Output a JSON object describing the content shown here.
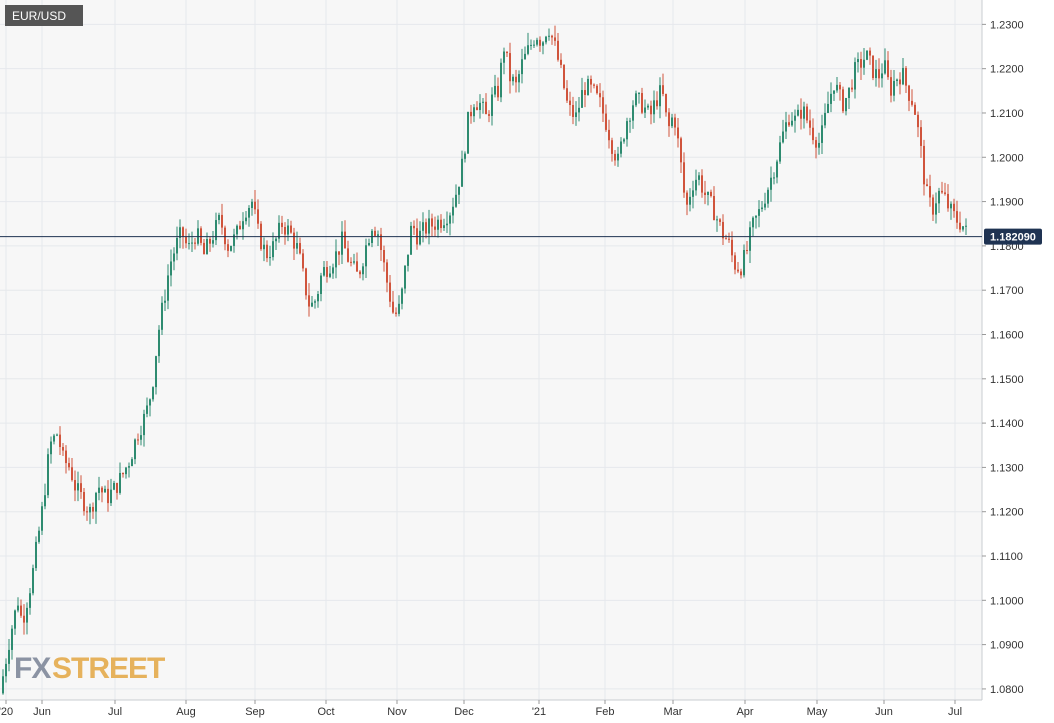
{
  "symbol": "EUR/USD",
  "brand": {
    "part1": "FX",
    "part2": "STREET"
  },
  "colors": {
    "up": "#2e8b70",
    "down": "#d0543c",
    "price_line": "#1f3352",
    "grid": "#e6e8ec",
    "plot_bg": "#f7f7f7",
    "label_bg": "#1f3352",
    "symbol_bg": "#555555"
  },
  "chart_data": {
    "type": "candlestick",
    "title": "EUR/USD",
    "ylim": [
      1.0775,
      1.2355
    ],
    "yticks": [
      1.08,
      1.09,
      1.1,
      1.11,
      1.12,
      1.13,
      1.14,
      1.15,
      1.16,
      1.17,
      1.18,
      1.19,
      1.2,
      1.21,
      1.22,
      1.23
    ],
    "ytick_labels": [
      "1.0800",
      "1.0900",
      "1.1000",
      "1.1100",
      "1.1200",
      "1.1300",
      "1.1400",
      "1.1500",
      "1.1600",
      "1.1700",
      "1.1800",
      "1.1900",
      "1.2000",
      "1.2100",
      "1.2200",
      "1.2300"
    ],
    "x_labels": [
      "'20",
      "Jun",
      "Jul",
      "Aug",
      "Sep",
      "Oct",
      "Nov",
      "Dec",
      "'21",
      "Feb",
      "Mar",
      "Apr",
      "May",
      "Jun",
      "Jul"
    ],
    "current_price": 1.18209,
    "current_price_label": "1.182090",
    "grid": true,
    "close_path": [
      [
        0,
        1.079
      ],
      [
        10,
        1.092
      ],
      [
        18,
        1.1
      ],
      [
        22,
        1.095
      ],
      [
        32,
        1.105
      ],
      [
        42,
        1.12
      ],
      [
        50,
        1.135
      ],
      [
        58,
        1.138
      ],
      [
        62,
        1.132
      ],
      [
        70,
        1.13
      ],
      [
        76,
        1.125
      ],
      [
        82,
        1.123
      ],
      [
        90,
        1.12
      ],
      [
        98,
        1.126
      ],
      [
        106,
        1.123
      ],
      [
        114,
        1.125
      ],
      [
        122,
        1.128
      ],
      [
        130,
        1.132
      ],
      [
        138,
        1.138
      ],
      [
        146,
        1.142
      ],
      [
        152,
        1.148
      ],
      [
        158,
        1.16
      ],
      [
        164,
        1.168
      ],
      [
        170,
        1.176
      ],
      [
        176,
        1.18
      ],
      [
        182,
        1.183
      ],
      [
        188,
        1.179
      ],
      [
        196,
        1.183
      ],
      [
        204,
        1.178
      ],
      [
        212,
        1.182
      ],
      [
        220,
        1.186
      ],
      [
        228,
        1.18
      ],
      [
        236,
        1.182
      ],
      [
        244,
        1.188
      ],
      [
        252,
        1.19
      ],
      [
        258,
        1.183
      ],
      [
        266,
        1.178
      ],
      [
        274,
        1.18
      ],
      [
        282,
        1.185
      ],
      [
        290,
        1.183
      ],
      [
        298,
        1.179
      ],
      [
        304,
        1.172
      ],
      [
        310,
        1.166
      ],
      [
        316,
        1.168
      ],
      [
        322,
        1.174
      ],
      [
        330,
        1.176
      ],
      [
        336,
        1.178
      ],
      [
        342,
        1.181
      ],
      [
        350,
        1.176
      ],
      [
        358,
        1.173
      ],
      [
        366,
        1.18
      ],
      [
        372,
        1.185
      ],
      [
        378,
        1.183
      ],
      [
        386,
        1.173
      ],
      [
        394,
        1.164
      ],
      [
        400,
        1.166
      ],
      [
        406,
        1.176
      ],
      [
        412,
        1.185
      ],
      [
        418,
        1.182
      ],
      [
        426,
        1.184
      ],
      [
        434,
        1.185
      ],
      [
        442,
        1.186
      ],
      [
        450,
        1.188
      ],
      [
        456,
        1.192
      ],
      [
        462,
        1.198
      ],
      [
        468,
        1.208
      ],
      [
        474,
        1.213
      ],
      [
        480,
        1.212
      ],
      [
        486,
        1.209
      ],
      [
        492,
        1.213
      ],
      [
        498,
        1.215
      ],
      [
        504,
        1.225
      ],
      [
        510,
        1.218
      ],
      [
        516,
        1.216
      ],
      [
        522,
        1.221
      ],
      [
        530,
        1.225
      ],
      [
        536,
        1.228
      ],
      [
        542,
        1.226
      ],
      [
        548,
        1.23
      ],
      [
        556,
        1.224
      ],
      [
        562,
        1.218
      ],
      [
        568,
        1.211
      ],
      [
        576,
        1.209
      ],
      [
        584,
        1.216
      ],
      [
        592,
        1.215
      ],
      [
        600,
        1.212
      ],
      [
        606,
        1.208
      ],
      [
        612,
        1.203
      ],
      [
        618,
        1.199
      ],
      [
        626,
        1.208
      ],
      [
        634,
        1.213
      ],
      [
        642,
        1.212
      ],
      [
        650,
        1.209
      ],
      [
        656,
        1.213
      ],
      [
        662,
        1.215
      ],
      [
        668,
        1.206
      ],
      [
        674,
        1.21
      ],
      [
        680,
        1.2
      ],
      [
        686,
        1.188
      ],
      [
        692,
        1.194
      ],
      [
        698,
        1.196
      ],
      [
        706,
        1.191
      ],
      [
        714,
        1.188
      ],
      [
        722,
        1.183
      ],
      [
        728,
        1.181
      ],
      [
        734,
        1.176
      ],
      [
        740,
        1.175
      ],
      [
        746,
        1.178
      ],
      [
        752,
        1.184
      ],
      [
        760,
        1.188
      ],
      [
        766,
        1.192
      ],
      [
        772,
        1.196
      ],
      [
        778,
        1.201
      ],
      [
        784,
        1.206
      ],
      [
        790,
        1.21
      ],
      [
        796,
        1.208
      ],
      [
        802,
        1.211
      ],
      [
        808,
        1.208
      ],
      [
        814,
        1.205
      ],
      [
        820,
        1.203
      ],
      [
        828,
        1.212
      ],
      [
        834,
        1.217
      ],
      [
        842,
        1.212
      ],
      [
        848,
        1.214
      ],
      [
        854,
        1.219
      ],
      [
        860,
        1.221
      ],
      [
        866,
        1.223
      ],
      [
        872,
        1.22
      ],
      [
        878,
        1.218
      ],
      [
        884,
        1.221
      ],
      [
        890,
        1.215
      ],
      [
        896,
        1.218
      ],
      [
        902,
        1.219
      ],
      [
        908,
        1.215
      ],
      [
        914,
        1.212
      ],
      [
        920,
        1.203
      ],
      [
        926,
        1.192
      ],
      [
        932,
        1.188
      ],
      [
        938,
        1.192
      ],
      [
        944,
        1.191
      ],
      [
        950,
        1.188
      ],
      [
        956,
        1.186
      ],
      [
        962,
        1.185
      ],
      [
        968,
        1.1821
      ]
    ]
  }
}
